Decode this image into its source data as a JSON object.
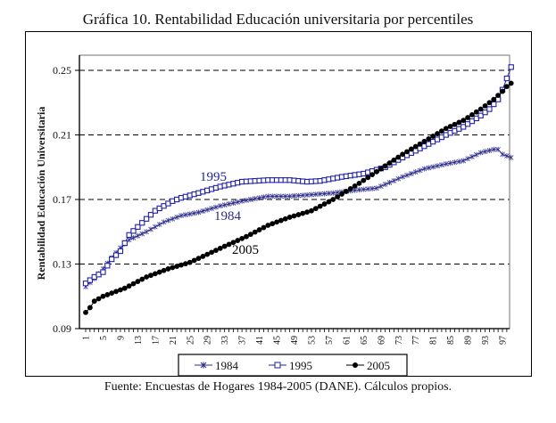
{
  "chart_data": {
    "type": "line",
    "title": "Gráfica 10. Rentabilidad Educación universitaria por percentiles",
    "xlabel": "",
    "ylabel": "Rentabilidad Educación Universitaria",
    "source": "Fuente: Encuestas de Hogares 1984-2005 (DANE). Cálculos propios.",
    "ylim": [
      0.09,
      0.26
    ],
    "xlim": [
      1,
      99
    ],
    "yticks": [
      "0.09",
      "0.13",
      "0.17",
      "0.21",
      "0.25"
    ],
    "ytick_values": [
      0.09,
      0.13,
      0.17,
      0.21,
      0.25
    ],
    "xticks": [
      "1",
      "5",
      "9",
      "13",
      "17",
      "21",
      "25",
      "29",
      "33",
      "37",
      "41",
      "45",
      "49",
      "53",
      "57",
      "61",
      "65",
      "69",
      "73",
      "77",
      "81",
      "85",
      "89",
      "93",
      "97"
    ],
    "grid": "horizontal-dashed",
    "legend": "bottom",
    "series_keypoints_note": "values read at key percentiles and linearly interpolated",
    "series": [
      {
        "name": "1984",
        "color": "#2b2b8c",
        "marker": "star",
        "inline_label": "1984",
        "keypoints": [
          [
            1,
            0.116
          ],
          [
            3,
            0.121
          ],
          [
            5,
            0.127
          ],
          [
            7,
            0.134
          ],
          [
            9,
            0.14
          ],
          [
            11,
            0.145
          ],
          [
            15,
            0.15
          ],
          [
            19,
            0.156
          ],
          [
            23,
            0.16
          ],
          [
            27,
            0.162
          ],
          [
            32,
            0.166
          ],
          [
            37,
            0.169
          ],
          [
            43,
            0.172
          ],
          [
            48,
            0.172
          ],
          [
            53,
            0.173
          ],
          [
            58,
            0.174
          ],
          [
            64,
            0.176
          ],
          [
            68,
            0.177
          ],
          [
            74,
            0.184
          ],
          [
            79,
            0.189
          ],
          [
            84,
            0.192
          ],
          [
            88,
            0.194
          ],
          [
            92,
            0.199
          ],
          [
            95,
            0.201
          ],
          [
            96,
            0.201
          ],
          [
            97,
            0.198
          ],
          [
            99,
            0.196
          ]
        ]
      },
      {
        "name": "1995",
        "color": "#1f1fa8",
        "marker": "square",
        "inline_label": "1995",
        "keypoints": [
          [
            1,
            0.118
          ],
          [
            2,
            0.12
          ],
          [
            3,
            0.122
          ],
          [
            5,
            0.125
          ],
          [
            7,
            0.133
          ],
          [
            9,
            0.138
          ],
          [
            11,
            0.148
          ],
          [
            13,
            0.153
          ],
          [
            15,
            0.158
          ],
          [
            17,
            0.163
          ],
          [
            19,
            0.166
          ],
          [
            21,
            0.169
          ],
          [
            23,
            0.171
          ],
          [
            27,
            0.174
          ],
          [
            32,
            0.178
          ],
          [
            37,
            0.181
          ],
          [
            43,
            0.182
          ],
          [
            48,
            0.182
          ],
          [
            52,
            0.181
          ],
          [
            55,
            0.1815
          ],
          [
            60,
            0.184
          ],
          [
            65,
            0.186
          ],
          [
            70,
            0.19
          ],
          [
            74,
            0.196
          ],
          [
            79,
            0.203
          ],
          [
            84,
            0.21
          ],
          [
            88,
            0.215
          ],
          [
            92,
            0.222
          ],
          [
            94,
            0.226
          ],
          [
            96,
            0.232
          ],
          [
            97,
            0.238
          ],
          [
            98,
            0.245
          ],
          [
            99,
            0.252
          ]
        ]
      },
      {
        "name": "2005",
        "color": "#000000",
        "marker": "circle",
        "inline_label": "2005",
        "keypoints": [
          [
            1,
            0.1
          ],
          [
            2,
            0.103
          ],
          [
            3,
            0.107
          ],
          [
            5,
            0.11
          ],
          [
            7,
            0.112
          ],
          [
            10,
            0.115
          ],
          [
            15,
            0.122
          ],
          [
            20,
            0.127
          ],
          [
            25,
            0.131
          ],
          [
            29,
            0.136
          ],
          [
            33,
            0.141
          ],
          [
            38,
            0.147
          ],
          [
            43,
            0.154
          ],
          [
            48,
            0.159
          ],
          [
            53,
            0.163
          ],
          [
            58,
            0.17
          ],
          [
            64,
            0.18
          ],
          [
            69,
            0.189
          ],
          [
            74,
            0.198
          ],
          [
            79,
            0.206
          ],
          [
            84,
            0.214
          ],
          [
            88,
            0.219
          ],
          [
            92,
            0.226
          ],
          [
            95,
            0.232
          ],
          [
            97,
            0.237
          ],
          [
            98,
            0.24
          ],
          [
            99,
            0.242
          ]
        ]
      }
    ]
  },
  "legend": {
    "items": [
      {
        "label": "1984"
      },
      {
        "label": "1995"
      },
      {
        "label": "2005"
      }
    ]
  }
}
